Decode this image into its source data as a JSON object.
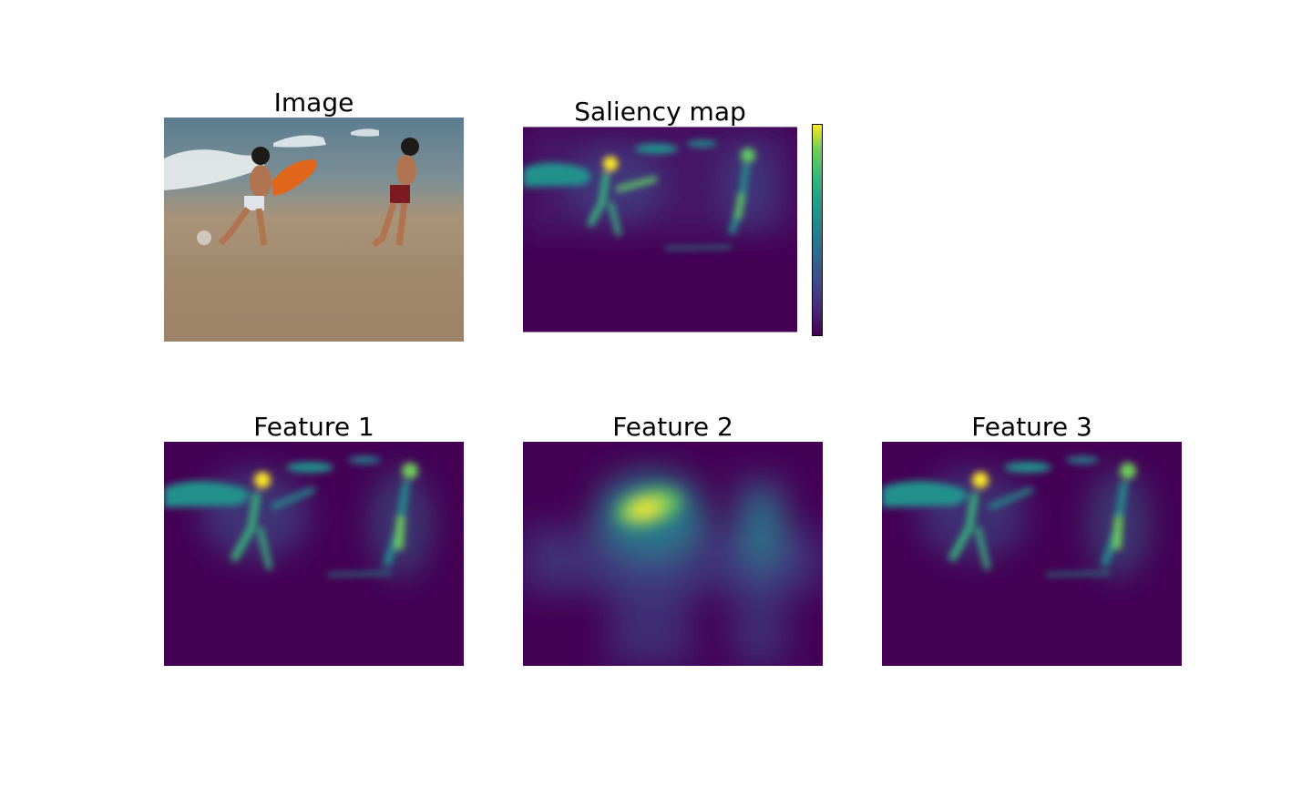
{
  "figure": {
    "panels": [
      {
        "id": "image",
        "title": "Image",
        "content": "beach-photo"
      },
      {
        "id": "saliency",
        "title": "Saliency map",
        "content": "viridis-heatmap",
        "colorbar": true
      },
      {
        "id": "feature1",
        "title": "Feature 1",
        "content": "viridis-heatmap"
      },
      {
        "id": "feature2",
        "title": "Feature 2",
        "content": "viridis-heatmap"
      },
      {
        "id": "feature3",
        "title": "Feature 3",
        "content": "viridis-heatmap"
      }
    ],
    "colormap": "viridis",
    "colors": {
      "viridis_low": "#440154",
      "viridis_dark": "#3b0f70",
      "viridis_mid": "#21918c",
      "viridis_green": "#5ec962",
      "viridis_high": "#fde725",
      "sea": "#6f8a99",
      "sand": "#a58a68",
      "board": "#e0661c",
      "shorts": "#b01f2a"
    }
  }
}
